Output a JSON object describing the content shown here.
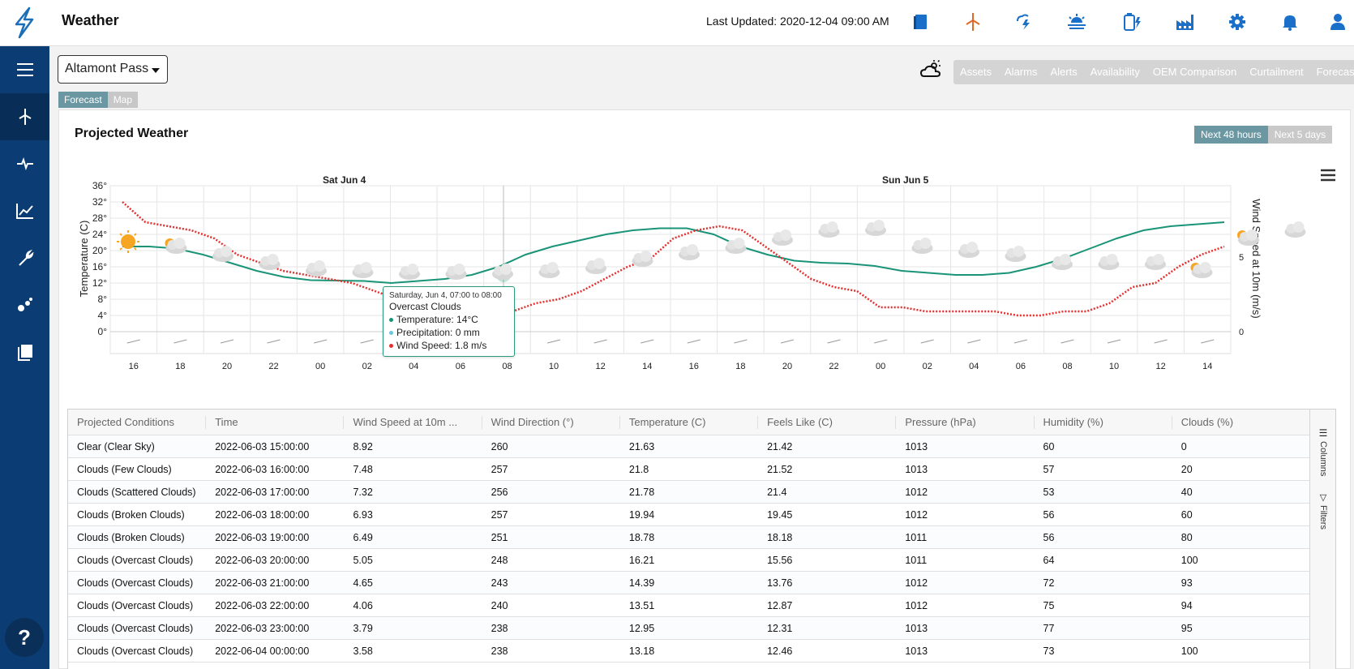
{
  "header": {
    "title": "Weather",
    "last_updated": "Last Updated: 2020-12-04 09:00 AM",
    "icons": [
      "book-icon",
      "wind-turbine-icon",
      "storm-icon",
      "sunrise-icon",
      "battery-icon",
      "factory-icon",
      "gear-icon",
      "bell-icon",
      "user-icon"
    ]
  },
  "sidebar": {
    "items": [
      "menu-icon",
      "wind-turbine-icon",
      "pulse-icon",
      "line-chart-icon",
      "wrench-icon",
      "scatter-icon",
      "reports-icon"
    ],
    "help": "?"
  },
  "site_select": {
    "value": "Altamont Pass"
  },
  "nav_tabs": [
    "Assets",
    "Alarms",
    "Alerts",
    "Availability",
    "OEM Comparison",
    "Curtailment",
    "Forecast"
  ],
  "sub_tabs": [
    "Forecast",
    "Map"
  ],
  "panel": {
    "title": "Projected Weather",
    "range_buttons": [
      "Next 48 hours",
      "Next 5 days"
    ],
    "active_range": "Next 48 hours"
  },
  "tooltip": {
    "date": "Saturday, Jun 4, 07:00 to 08:00",
    "condition": "Overcast Clouds",
    "temperature": "Temperature: 14°C",
    "precipitation": "Precipitation: 0 mm",
    "wind": "Wind Speed: 1.8 m/s"
  },
  "chart_data": {
    "type": "line",
    "ylabel": "Temperature (C)",
    "y2label": "Wind Speed at 10m (m/s)",
    "ylim": [
      0,
      36
    ],
    "y_ticks": [
      "0°",
      "4°",
      "8°",
      "12°",
      "16°",
      "20°",
      "24°",
      "28°",
      "32°",
      "36°"
    ],
    "y2_ticks": [
      "0",
      "5"
    ],
    "day_labels": [
      "Sat Jun 4",
      "Sun Jun 5"
    ],
    "x_ticks": [
      "16",
      "18",
      "20",
      "22",
      "00",
      "02",
      "04",
      "06",
      "08",
      "10",
      "12",
      "14",
      "16",
      "18",
      "20",
      "22",
      "00",
      "02",
      "04",
      "06",
      "08",
      "10",
      "12",
      "14"
    ],
    "series": [
      {
        "name": "Temperature",
        "color": "#1a9478",
        "values": [
          21,
          21,
          20.5,
          19,
          17,
          15,
          13.5,
          12.7,
          12.6,
          12.5,
          12,
          12.5,
          13,
          14,
          16,
          19,
          21,
          22.5,
          24,
          25,
          25.5,
          25.5,
          24,
          21,
          19,
          17.5,
          17,
          16.8,
          16.2,
          15,
          14.5,
          14,
          14,
          14.5,
          16,
          18,
          20.5,
          23,
          25,
          26,
          26.5,
          27
        ]
      },
      {
        "name": "Wind Speed",
        "color": "#e53030",
        "values": [
          32,
          27,
          26,
          25,
          23,
          19,
          17,
          15,
          14,
          13,
          12,
          10,
          8,
          7,
          6,
          6,
          5.5,
          5,
          7,
          8,
          10,
          13,
          16,
          18,
          23,
          25,
          26,
          25,
          21,
          17,
          13,
          11,
          10,
          6,
          6,
          5,
          5,
          5,
          5,
          4,
          4,
          5,
          5,
          7,
          11,
          12,
          16,
          19,
          21
        ]
      }
    ],
    "weather_icons": [
      "sun",
      "partly-cloudy",
      "cloud",
      "cloud",
      "cloud",
      "cloud",
      "cloud",
      "cloud",
      "cloud",
      "cloud",
      "cloud",
      "cloud",
      "cloud",
      "cloud",
      "cloud",
      "cloud",
      "cloud",
      "cloud",
      "cloud",
      "cloud",
      "cloud",
      "cloud",
      "cloud",
      "partly-cloudy",
      "partly-cloudy",
      "cloud"
    ]
  },
  "grid": {
    "columns": [
      "Projected Conditions",
      "Time",
      "Wind Speed at 10m ...",
      "Wind Direction (°)",
      "Temperature (C)",
      "Feels Like (C)",
      "Pressure (hPa)",
      "Humidity (%)",
      "Clouds (%)"
    ],
    "rows": [
      [
        "Clear (Clear Sky)",
        "2022-06-03 15:00:00",
        "8.92",
        "260",
        "21.63",
        "21.42",
        "1013",
        "60",
        "0"
      ],
      [
        "Clouds (Few Clouds)",
        "2022-06-03 16:00:00",
        "7.48",
        "257",
        "21.8",
        "21.52",
        "1013",
        "57",
        "20"
      ],
      [
        "Clouds (Scattered Clouds)",
        "2022-06-03 17:00:00",
        "7.32",
        "256",
        "21.78",
        "21.4",
        "1012",
        "53",
        "40"
      ],
      [
        "Clouds (Broken Clouds)",
        "2022-06-03 18:00:00",
        "6.93",
        "257",
        "19.94",
        "19.45",
        "1012",
        "56",
        "60"
      ],
      [
        "Clouds (Broken Clouds)",
        "2022-06-03 19:00:00",
        "6.49",
        "251",
        "18.78",
        "18.18",
        "1011",
        "56",
        "80"
      ],
      [
        "Clouds (Overcast Clouds)",
        "2022-06-03 20:00:00",
        "5.05",
        "248",
        "16.21",
        "15.56",
        "1011",
        "64",
        "100"
      ],
      [
        "Clouds (Overcast Clouds)",
        "2022-06-03 21:00:00",
        "4.65",
        "243",
        "14.39",
        "13.76",
        "1012",
        "72",
        "93"
      ],
      [
        "Clouds (Overcast Clouds)",
        "2022-06-03 22:00:00",
        "4.06",
        "240",
        "13.51",
        "12.87",
        "1012",
        "75",
        "94"
      ],
      [
        "Clouds (Overcast Clouds)",
        "2022-06-03 23:00:00",
        "3.79",
        "238",
        "12.95",
        "12.31",
        "1013",
        "77",
        "95"
      ],
      [
        "Clouds (Overcast Clouds)",
        "2022-06-04 00:00:00",
        "3.58",
        "238",
        "13.18",
        "12.46",
        "1013",
        "73",
        "100"
      ]
    ],
    "side_tools": [
      "Columns",
      "Filters"
    ]
  }
}
